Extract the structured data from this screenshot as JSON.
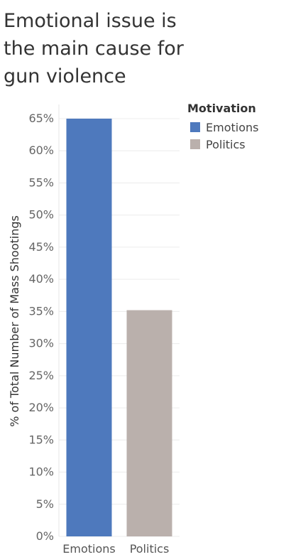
{
  "title": "Emotional issue is the main cause for gun violence",
  "legend": {
    "title": "Motivation",
    "items": [
      {
        "label": "Emotions",
        "color": "#4e79bd"
      },
      {
        "label": "Politics",
        "color": "#bab0ac"
      }
    ]
  },
  "chart_data": {
    "type": "bar",
    "categories": [
      "Emotions",
      "Politics"
    ],
    "values": [
      65,
      35.2
    ],
    "colors": [
      "#4e79bd",
      "#bab0ac"
    ],
    "ylabel": "% of Total Number of Mass Shootings",
    "ylim": [
      0,
      65
    ],
    "yticks": [
      0,
      5,
      10,
      15,
      20,
      25,
      30,
      35,
      40,
      45,
      50,
      55,
      60,
      65
    ],
    "ytick_labels": [
      "0%",
      "5%",
      "10%",
      "15%",
      "20%",
      "25%",
      "30%",
      "35%",
      "40%",
      "45%",
      "50%",
      "55%",
      "60%",
      "65%"
    ],
    "grid": true,
    "legend_position": "top-right"
  }
}
